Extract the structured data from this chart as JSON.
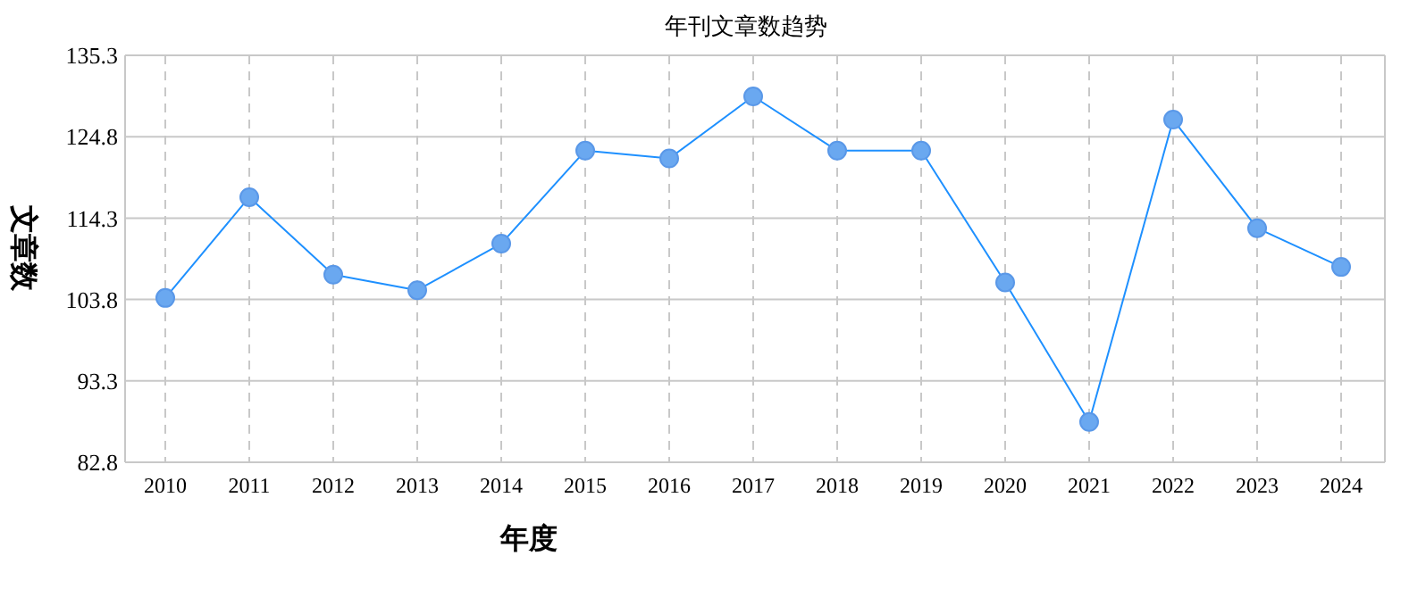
{
  "chart_data": {
    "type": "line",
    "title": "年刊文章数趋势",
    "xlabel": "年度",
    "ylabel": "文章数",
    "categories": [
      "2010",
      "2011",
      "2012",
      "2013",
      "2014",
      "2015",
      "2016",
      "2017",
      "2018",
      "2019",
      "2020",
      "2021",
      "2022",
      "2023",
      "2024"
    ],
    "series": [
      {
        "color": "#1e90ff",
        "values": [
          104,
          117,
          107,
          105,
          111,
          123,
          122,
          130,
          123,
          123,
          106,
          88,
          127,
          113,
          108
        ]
      }
    ],
    "ylim": [
      82.8,
      135.3
    ],
    "yticks": [
      82.8,
      93.3,
      103.8,
      114.3,
      124.8,
      135.3
    ],
    "grid": true,
    "marker": "circle",
    "line_style": "solid"
  }
}
